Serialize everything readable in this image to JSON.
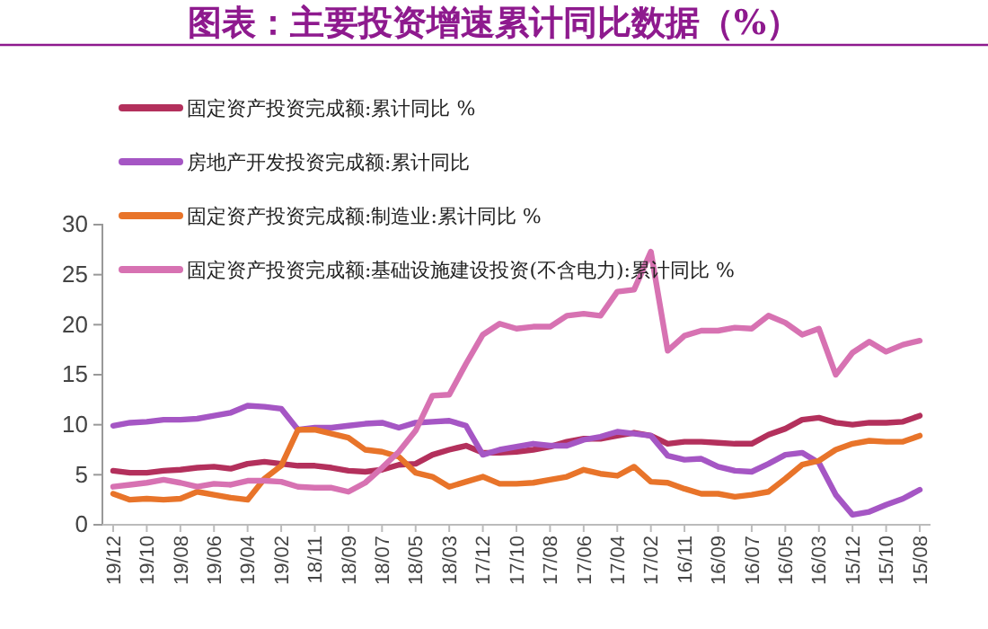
{
  "chart_data": {
    "type": "line",
    "title": "图表：主要投资增速累计同比数据（%）",
    "categories": [
      "19/12",
      null,
      "19/10",
      null,
      "19/08",
      null,
      "19/06",
      null,
      "19/04",
      null,
      "19/02",
      null,
      "18/11",
      null,
      "18/09",
      null,
      "18/07",
      null,
      "18/05",
      null,
      "18/03",
      null,
      "17/12",
      null,
      "17/10",
      null,
      "17/08",
      null,
      "17/06",
      null,
      "17/04",
      null,
      "17/02",
      null,
      "16/11",
      null,
      "16/09",
      null,
      "16/07",
      null,
      "16/05",
      null,
      "16/03",
      null,
      "15/12",
      null,
      "15/10",
      null,
      "15/08"
    ],
    "series": [
      {
        "name": "固定资产投资完成额:累计同比 %",
        "color": "#b3305c",
        "values": [
          5.4,
          5.2,
          5.2,
          5.4,
          5.5,
          5.7,
          5.8,
          5.6,
          6.1,
          6.3,
          6.1,
          5.9,
          5.9,
          5.7,
          5.4,
          5.3,
          5.5,
          6.0,
          6.1,
          7.0,
          7.5,
          7.9,
          7.2,
          7.2,
          7.3,
          7.5,
          7.8,
          8.3,
          8.6,
          8.6,
          8.9,
          9.2,
          8.9,
          8.1,
          8.3,
          8.3,
          8.2,
          8.1,
          8.1,
          9.0,
          9.6,
          10.5,
          10.7,
          10.2,
          10.0,
          10.2,
          10.2,
          10.3,
          10.9
        ]
      },
      {
        "name": "房地产开发投资完成额:累计同比",
        "color": "#a556c4",
        "values": [
          9.9,
          10.2,
          10.3,
          10.5,
          10.5,
          10.6,
          10.9,
          11.2,
          11.9,
          11.8,
          11.6,
          9.5,
          9.7,
          9.7,
          9.9,
          10.1,
          10.2,
          9.7,
          10.2,
          10.3,
          10.4,
          9.9,
          7.0,
          7.5,
          7.8,
          8.1,
          7.9,
          7.9,
          8.5,
          8.8,
          9.3,
          9.1,
          8.9,
          6.9,
          6.5,
          6.6,
          5.8,
          5.4,
          5.3,
          6.1,
          7.0,
          7.2,
          6.2,
          3.0,
          1.0,
          1.3,
          2.0,
          2.6,
          3.5
        ]
      },
      {
        "name": "固定资产投资完成额:制造业:累计同比 %",
        "color": "#e8742a",
        "values": [
          3.1,
          2.5,
          2.6,
          2.5,
          2.6,
          3.3,
          3.0,
          2.7,
          2.5,
          4.6,
          5.9,
          9.5,
          9.5,
          9.1,
          8.7,
          7.5,
          7.3,
          6.8,
          5.2,
          4.8,
          3.8,
          4.3,
          4.8,
          4.1,
          4.1,
          4.2,
          4.5,
          4.8,
          5.5,
          5.1,
          4.9,
          5.8,
          4.3,
          4.2,
          3.6,
          3.1,
          3.1,
          2.8,
          3.0,
          3.3,
          4.6,
          6.0,
          6.4,
          7.5,
          8.1,
          8.4,
          8.3,
          8.3,
          8.9
        ]
      },
      {
        "name": "固定资产投资完成额:基础设施建设投资(不含电力):累计同比 %",
        "color": "#d772b2",
        "values": [
          3.8,
          4.0,
          4.2,
          4.5,
          4.2,
          3.8,
          4.1,
          4.0,
          4.4,
          4.4,
          4.3,
          3.8,
          3.7,
          3.7,
          3.3,
          4.2,
          5.7,
          7.3,
          9.4,
          12.9,
          13.0,
          16.1,
          19.0,
          20.1,
          19.6,
          19.8,
          19.8,
          20.9,
          21.1,
          20.9,
          23.3,
          23.5,
          27.3,
          17.4,
          18.9,
          19.4,
          19.4,
          19.7,
          19.6,
          20.9,
          20.2,
          19.0,
          19.6,
          15.0,
          17.2,
          18.3,
          17.3,
          18.0,
          18.4
        ]
      }
    ],
    "ylim": [
      0,
      30
    ],
    "yticks": [
      0,
      5,
      10,
      15,
      20,
      25,
      30
    ],
    "grid": false,
    "legend": "top left",
    "marker": "none",
    "line_style": "solid"
  }
}
